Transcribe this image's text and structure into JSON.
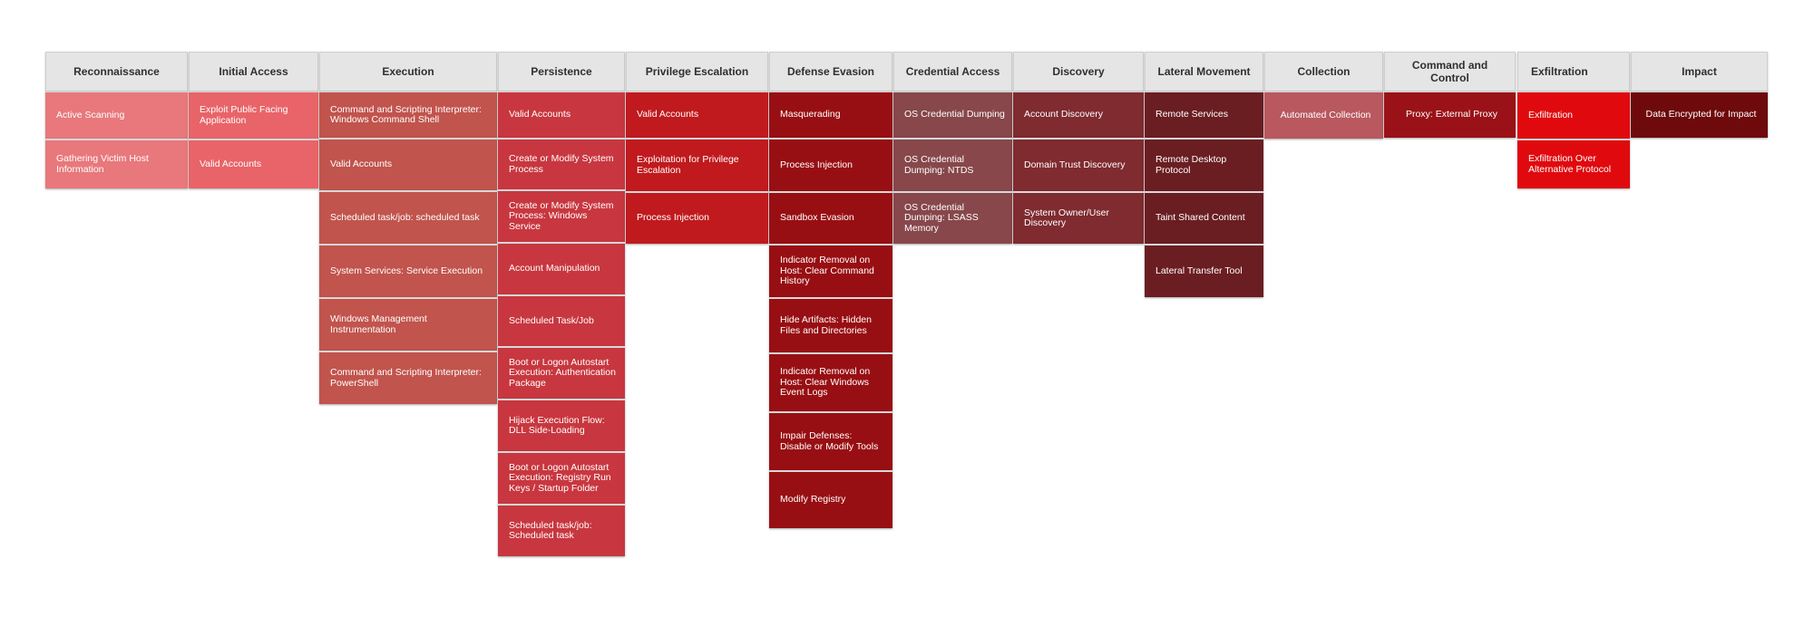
{
  "tactics": [
    {
      "name": "Reconnaissance",
      "color": "#e8787b",
      "techniques": [
        "Active Scanning",
        "Gathering Victim Host Information"
      ]
    },
    {
      "name": "Initial Access",
      "color": "#e86468",
      "techniques": [
        "Exploit Public Facing Application",
        "Valid Accounts"
      ]
    },
    {
      "name": "Execution",
      "color": "#c1544d",
      "techniques": [
        "Command and Scripting Interpreter: Windows Command Shell",
        "Valid Accounts",
        "Scheduled task/job: scheduled task",
        "System Services: Service Execution",
        "Windows Management Instrumentation",
        "Command and Scripting Interpreter: PowerShell"
      ]
    },
    {
      "name": "Persistence",
      "color": "#c8373f",
      "techniques": [
        "Valid Accounts",
        "Create or Modify System Process",
        "Create or Modify System Process: Windows Service",
        "Account Manipulation",
        "Scheduled Task/Job",
        "Boot or Logon Autostart Execution: Authentication Package",
        "Hijack Execution Flow: DLL Side-Loading",
        "Boot or Logon Autostart Execution: Registry Run Keys / Startup Folder",
        "Scheduled task/job: Scheduled task"
      ]
    },
    {
      "name": "Privilege Escalation",
      "color": "#c01a1e",
      "techniques": [
        "Valid Accounts",
        "Exploitation for Privilege Escalation",
        "Process Injection"
      ]
    },
    {
      "name": "Defense Evasion",
      "color": "#980f13",
      "techniques": [
        "Masquerading",
        "Process Injection",
        "Sandbox Evasion",
        "Indicator Removal on Host: Clear Command History",
        "Hide Artifacts: Hidden Files and Directories",
        "Indicator Removal on Host: Clear Windows Event Logs",
        "Impair Defenses: Disable or Modify Tools",
        "Modify Registry"
      ]
    },
    {
      "name": "Credential Access",
      "color": "#87474b",
      "techniques": [
        "OS Credential Dumping",
        "OS Credential Dumping: NTDS",
        "OS Credential Dumping: LSASS Memory"
      ]
    },
    {
      "name": "Discovery",
      "color": "#7f2b30",
      "techniques": [
        "Account Discovery",
        "Domain Trust Discovery",
        "System Owner/User Discovery"
      ]
    },
    {
      "name": "Lateral Movement",
      "color": "#6a1e22",
      "techniques": [
        "Remote Services",
        "Remote Desktop Protocol",
        "Taint Shared Content",
        "Lateral Transfer Tool"
      ]
    },
    {
      "name": "Collection",
      "color": "#b9585e",
      "techniques": [
        "Automated Collection"
      ]
    },
    {
      "name": "Command and Control",
      "color": "#9a1218",
      "techniques": [
        "Proxy: External Proxy"
      ]
    },
    {
      "name": "Exfiltration",
      "color": "#e00a0e",
      "techniques": [
        "Exfiltration",
        "Exfiltration Over Alternative Protocol"
      ]
    },
    {
      "name": "Impact",
      "color": "#6e0a0c",
      "techniques": [
        "Data Encrypted for Impact"
      ]
    }
  ]
}
